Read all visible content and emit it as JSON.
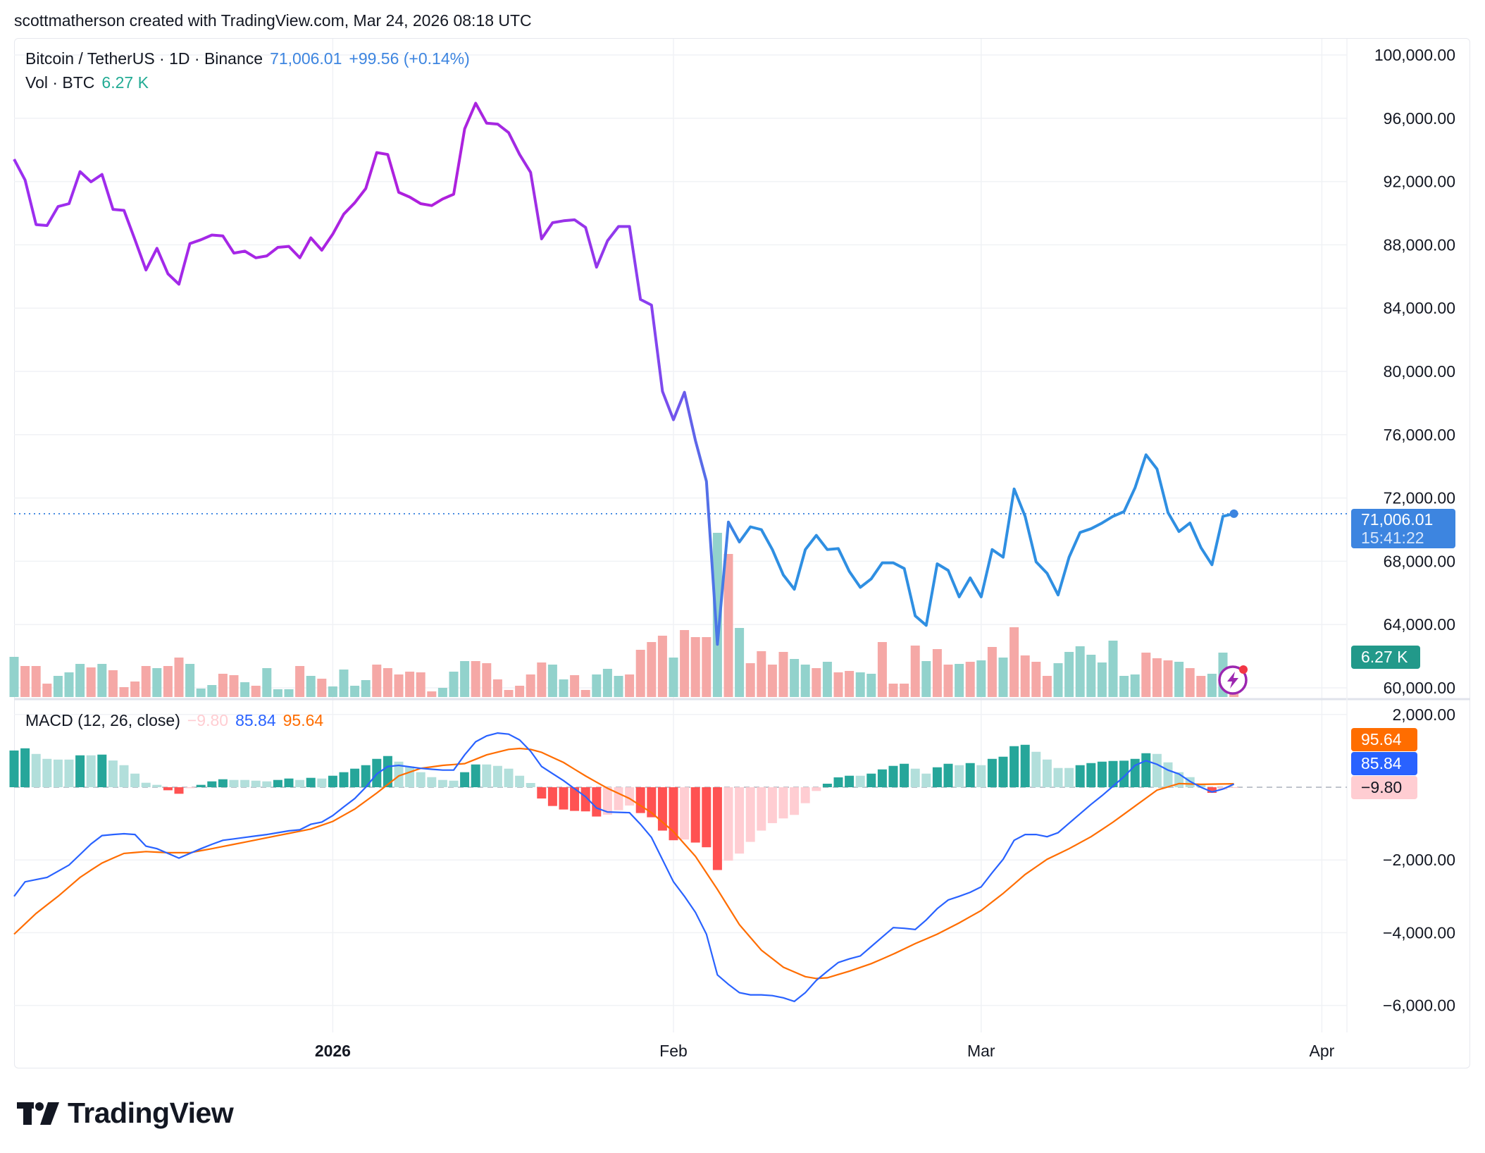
{
  "caption": "scottmatherson created with TradingView.com, Mar 24, 2026 08:18 UTC",
  "legend": {
    "symbol": "Bitcoin / TetherUS · 1D · Binance",
    "last": "71,006.01",
    "change": "+99.56 (+0.14%)",
    "vol_label": "Vol · BTC",
    "vol_value": "6.27 K",
    "macd_label": "MACD (12, 26, close)",
    "macd_hist": "−9.80",
    "macd_value": "85.84",
    "macd_signal": "95.64"
  },
  "badges": {
    "price": "71,006.01",
    "countdown": "15:41:22",
    "volume": "6.27 K",
    "signal": "95.64",
    "macd": "85.84",
    "hist": "−9.80"
  },
  "branding": "TradingView",
  "colors": {
    "price_line_start": "#9b2ff0",
    "price_line_mid": "#b01fdc",
    "price_line_end": "#2f8fe2",
    "price_badge": "#3d85e0",
    "volume_badge": "#22998a",
    "up_volume": "#92d2cc",
    "down_volume": "#f5a8a6",
    "macd_line": "#2962ff",
    "signal_line": "#ff6d00",
    "hist_up_strong": "#26a69a",
    "hist_up_weak": "#b2dfdb",
    "hist_down_strong": "#ff5252",
    "hist_down_weak": "#ffcdd2",
    "grid": "#f0f2f5",
    "legend_price": "#3d85e0",
    "legend_volume": "#22ab94"
  },
  "chart_data": [
    {
      "type": "line",
      "pane": "price",
      "interval": "1D",
      "ylim": [
        60000,
        100000
      ],
      "y_ticks": [
        "100,000.00",
        "96,000.00",
        "92,000.00",
        "88,000.00",
        "84,000.00",
        "80,000.00",
        "76,000.00",
        "72,000.00",
        "68,000.00",
        "64,000.00",
        "60,000.00"
      ],
      "y_tick_values": [
        100000,
        96000,
        92000,
        88000,
        84000,
        80000,
        76000,
        72000,
        68000,
        64000,
        60000
      ],
      "x_ticks": [
        {
          "label": "2026",
          "date": "2026-01-01",
          "bold": true
        },
        {
          "label": "Feb",
          "date": "2026-02-01",
          "bold": false
        },
        {
          "label": "Mar",
          "date": "2026-03-01",
          "bold": false
        },
        {
          "label": "Apr",
          "date": "2026-04-01",
          "bold": false
        }
      ],
      "grid": true,
      "last_value": 71006.01,
      "dates": [
        "2025-12-03",
        "2025-12-04",
        "2025-12-05",
        "2025-12-06",
        "2025-12-07",
        "2025-12-08",
        "2025-12-09",
        "2025-12-10",
        "2025-12-11",
        "2025-12-12",
        "2025-12-13",
        "2025-12-14",
        "2025-12-15",
        "2025-12-16",
        "2025-12-17",
        "2025-12-18",
        "2025-12-19",
        "2025-12-20",
        "2025-12-21",
        "2025-12-22",
        "2025-12-23",
        "2025-12-24",
        "2025-12-25",
        "2025-12-26",
        "2025-12-27",
        "2025-12-28",
        "2025-12-29",
        "2025-12-30",
        "2025-12-31",
        "2026-01-01",
        "2026-01-02",
        "2026-01-03",
        "2026-01-04",
        "2026-01-05",
        "2026-01-06",
        "2026-01-07",
        "2026-01-08",
        "2026-01-09",
        "2026-01-10",
        "2026-01-11",
        "2026-01-12",
        "2026-01-13",
        "2026-01-14",
        "2026-01-15",
        "2026-01-16",
        "2026-01-17",
        "2026-01-18",
        "2026-01-19",
        "2026-01-20",
        "2026-01-21",
        "2026-01-22",
        "2026-01-23",
        "2026-01-24",
        "2026-01-25",
        "2026-01-26",
        "2026-01-27",
        "2026-01-28",
        "2026-01-29",
        "2026-01-30",
        "2026-01-31",
        "2026-02-01",
        "2026-02-02",
        "2026-02-03",
        "2026-02-04",
        "2026-02-05",
        "2026-02-06",
        "2026-02-07",
        "2026-02-08",
        "2026-02-09",
        "2026-02-10",
        "2026-02-11",
        "2026-02-12",
        "2026-02-13",
        "2026-02-14",
        "2026-02-15",
        "2026-02-16",
        "2026-02-17",
        "2026-02-18",
        "2026-02-19",
        "2026-02-20",
        "2026-02-21",
        "2026-02-22",
        "2026-02-23",
        "2026-02-24",
        "2026-02-25",
        "2026-02-26",
        "2026-02-27",
        "2026-02-28",
        "2026-03-01",
        "2026-03-02",
        "2026-03-03",
        "2026-03-04",
        "2026-03-05",
        "2026-03-06",
        "2026-03-07",
        "2026-03-08",
        "2026-03-09",
        "2026-03-10",
        "2026-03-11",
        "2026-03-12",
        "2026-03-13",
        "2026-03-14",
        "2026-03-15",
        "2026-03-16",
        "2026-03-17",
        "2026-03-18",
        "2026-03-19",
        "2026-03-20",
        "2026-03-21",
        "2026-03-22",
        "2026-03-23",
        "2026-03-24"
      ],
      "close": [
        93410,
        92100,
        89280,
        89220,
        90420,
        90600,
        92630,
        91980,
        92450,
        90240,
        90180,
        88320,
        86410,
        87780,
        86170,
        85510,
        88080,
        88320,
        88620,
        88560,
        87480,
        87600,
        87180,
        87300,
        87840,
        87900,
        87180,
        88440,
        87660,
        88680,
        89940,
        90660,
        91560,
        93830,
        93710,
        91320,
        91020,
        90600,
        90480,
        90900,
        91200,
        95330,
        96950,
        95690,
        95630,
        95090,
        93710,
        92580,
        88380,
        89400,
        89520,
        89580,
        89100,
        86590,
        88260,
        89160,
        89160,
        84550,
        84190,
        78740,
        76950,
        78680,
        75630,
        73050,
        62750,
        70480,
        69220,
        70180,
        70000,
        68740,
        67130,
        66230,
        68740,
        69640,
        68740,
        68800,
        67360,
        66350,
        66890,
        67900,
        67900,
        67540,
        64550,
        63950,
        67840,
        67420,
        65750,
        66950,
        65750,
        68740,
        68260,
        72570,
        70840,
        67960,
        67240,
        65870,
        68260,
        69820,
        70060,
        70420,
        70840,
        71140,
        72640,
        74730,
        73830,
        71080,
        69880,
        70420,
        68860,
        67780,
        70840,
        71006.01
      ],
      "volume_k_btc": [
        22.8,
        17.6,
        17.6,
        7.6,
        12,
        14,
        18.8,
        16.8,
        18.8,
        15.2,
        5.6,
        8.8,
        17.6,
        16.4,
        17.6,
        22.4,
        18.8,
        4.8,
        6.8,
        13.2,
        12.4,
        8.4,
        6.4,
        16.4,
        4.4,
        4.4,
        17.6,
        12,
        10.4,
        6,
        15.6,
        6.4,
        9.6,
        18.4,
        16.4,
        12.8,
        14.4,
        14,
        3.2,
        5.2,
        14.4,
        20.4,
        20.4,
        19.2,
        10,
        4,
        6.4,
        12.8,
        19.6,
        18.4,
        10,
        12.4,
        4,
        12.8,
        16,
        12,
        12.8,
        26.8,
        31.2,
        34.8,
        22.4,
        38,
        34,
        34,
        93.2,
        81.2,
        39.2,
        19.2,
        26,
        18.4,
        25.6,
        21.6,
        18.4,
        16.4,
        20,
        14,
        14.8,
        14,
        13.2,
        31.2,
        7.6,
        7.6,
        29.2,
        20.4,
        27.2,
        18.4,
        18.8,
        20,
        20.8,
        28.4,
        22.4,
        39.6,
        23.6,
        20,
        12,
        19.2,
        25.6,
        28.8,
        24,
        19.6,
        32,
        12,
        12.8,
        25.2,
        22,
        20.8,
        20,
        16.4,
        12,
        13.2,
        25.2,
        6.27
      ],
      "volume_direction": "uddduuududdddudduuudduduuududuuuudddddduuuddddddduudduuuddddudddududddduududduudddduddudududddduuuuuuuudddudduu"
    },
    {
      "type": "bar+line",
      "pane": "macd",
      "title": "MACD (12, 26, close)",
      "ylim": [
        -6500,
        2500
      ],
      "y_ticks": [
        "2,000.00",
        "−2,000.00",
        "−4,000.00",
        "−6,000.00"
      ],
      "y_tick_values": [
        2000,
        -2000,
        -4000,
        -6000
      ],
      "histogram": [
        1010,
        1070,
        915,
        780,
        760,
        760,
        877,
        877,
        897,
        735,
        606,
        374,
        123,
        65,
        -84,
        -180,
        -26,
        65,
        161,
        219,
        200,
        200,
        180,
        161,
        200,
        239,
        200,
        258,
        239,
        316,
        413,
        510,
        606,
        780,
        858,
        703,
        568,
        413,
        277,
        200,
        180,
        413,
        626,
        626,
        587,
        510,
        316,
        116,
        -310,
        -516,
        -613,
        -651,
        -664,
        -806,
        -755,
        -632,
        -503,
        -710,
        -826,
        -1193,
        -1458,
        -1438,
        -1522,
        -1651,
        -2277,
        -2019,
        -1825,
        -1503,
        -1193,
        -987,
        -858,
        -761,
        -439,
        -103,
        97,
        271,
        316,
        316,
        374,
        490,
        587,
        645,
        510,
        374,
        548,
        645,
        606,
        664,
        606,
        780,
        839,
        1129,
        1167,
        974,
        761,
        529,
        529,
        606,
        664,
        703,
        722,
        730,
        780,
        935,
        916,
        684,
        413,
        277,
        65,
        -155,
        -65,
        -9.8
      ],
      "macd": [
        -3000,
        -2600,
        -2540,
        -2480,
        -2310,
        -2140,
        -1850,
        -1560,
        -1330,
        -1300,
        -1280,
        -1300,
        -1620,
        -1690,
        -1820,
        -1950,
        -1820,
        -1690,
        -1570,
        -1460,
        -1420,
        -1380,
        -1340,
        -1300,
        -1250,
        -1200,
        -1170,
        -1020,
        -960,
        -780,
        -540,
        -310,
        0,
        365,
        570,
        600,
        560,
        520,
        495,
        470,
        470,
        890,
        1250,
        1410,
        1490,
        1460,
        1300,
        990,
        570,
        375,
        180,
        -40,
        -260,
        -570,
        -680,
        -690,
        -700,
        -1020,
        -1380,
        -1990,
        -2600,
        -3000,
        -3440,
        -4040,
        -5160,
        -5420,
        -5650,
        -5710,
        -5710,
        -5730,
        -5790,
        -5890,
        -5650,
        -5310,
        -5060,
        -4820,
        -4720,
        -4640,
        -4380,
        -4120,
        -3860,
        -3880,
        -3910,
        -3650,
        -3340,
        -3100,
        -3000,
        -2890,
        -2740,
        -2350,
        -1980,
        -1460,
        -1300,
        -1300,
        -1360,
        -1250,
        -990,
        -730,
        -470,
        -230,
        30,
        290,
        600,
        730,
        630,
        470,
        365,
        160,
        0,
        -130,
        -50,
        85.84
      ],
      "signal": [
        -4040,
        -3755,
        -3470,
        -3235,
        -3000,
        -2740,
        -2480,
        -2280,
        -2085,
        -1950,
        -1820,
        -1795,
        -1770,
        -1785,
        -1800,
        -1800,
        -1800,
        -1745,
        -1690,
        -1630,
        -1570,
        -1510,
        -1450,
        -1390,
        -1330,
        -1270,
        -1210,
        -1150,
        -1045,
        -940,
        -770,
        -600,
        -380,
        -160,
        75,
        310,
        415,
        520,
        560,
        600,
        625,
        650,
        770,
        890,
        965,
        1040,
        1065,
        1040,
        960,
        820,
        680,
        495,
        310,
        140,
        -30,
        -170,
        -310,
        -505,
        -700,
        -960,
        -1220,
        -1560,
        -1900,
        -2355,
        -2810,
        -3295,
        -3780,
        -4130,
        -4480,
        -4715,
        -4950,
        -5080,
        -5210,
        -5260,
        -5240,
        -5150,
        -5060,
        -4955,
        -4850,
        -4720,
        -4590,
        -4445,
        -4300,
        -4170,
        -4040,
        -3885,
        -3730,
        -3560,
        -3390,
        -3155,
        -2920,
        -2660,
        -2400,
        -2190,
        -1980,
        -1835,
        -1690,
        -1525,
        -1360,
        -1160,
        -960,
        -740,
        -520,
        -300,
        -80,
        10,
        100,
        90,
        80,
        85,
        90,
        95.64
      ]
    }
  ]
}
